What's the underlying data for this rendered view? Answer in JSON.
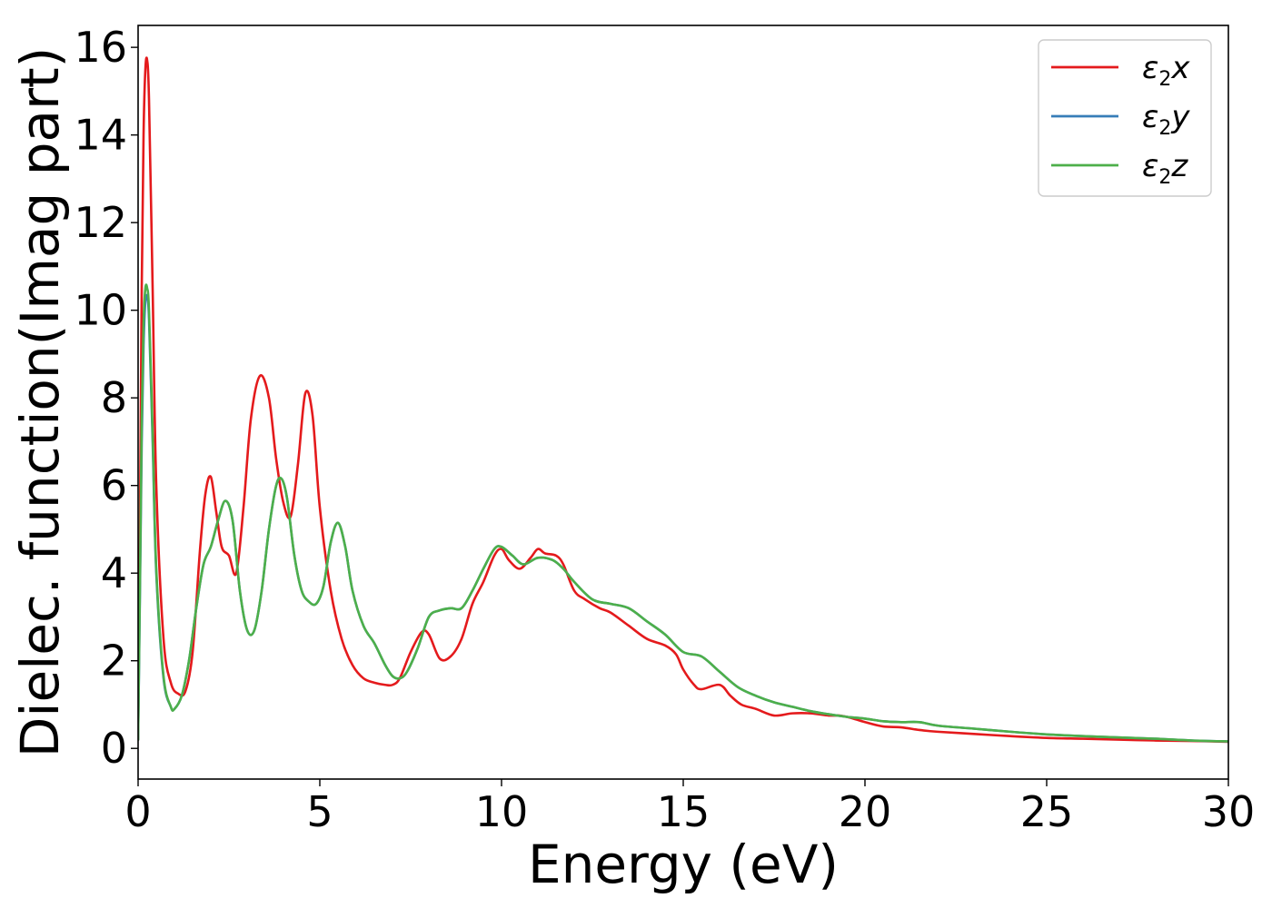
{
  "chart_data": {
    "type": "line",
    "xlabel": "Energy (eV)",
    "ylabel": "Dielec. function(Imag part)",
    "xlim": [
      0,
      30
    ],
    "ylim": [
      -0.7,
      16.5
    ],
    "xticks": [
      0,
      5,
      10,
      15,
      20,
      25,
      30
    ],
    "yticks": [
      0,
      2,
      4,
      6,
      8,
      10,
      12,
      14,
      16
    ],
    "grid": false,
    "legend_position": "top-right",
    "series": [
      {
        "name": "ε2x",
        "legend": {
          "base": "ε",
          "sub": "2",
          "var": "x"
        },
        "color": "#e41a1c",
        "x": [
          0,
          0.05,
          0.1,
          0.15,
          0.2,
          0.25,
          0.3,
          0.4,
          0.5,
          0.7,
          0.9,
          1.1,
          1.3,
          1.5,
          1.7,
          1.85,
          2.0,
          2.15,
          2.3,
          2.5,
          2.7,
          2.9,
          3.1,
          3.35,
          3.6,
          3.8,
          4.0,
          4.2,
          4.4,
          4.6,
          4.8,
          5.0,
          5.3,
          5.6,
          5.9,
          6.2,
          6.5,
          6.8,
          7.0,
          7.2,
          7.5,
          7.8,
          8.0,
          8.3,
          8.6,
          8.9,
          9.2,
          9.5,
          9.8,
          10.0,
          10.2,
          10.5,
          10.8,
          11.0,
          11.2,
          11.5,
          11.7,
          12.0,
          12.3,
          12.7,
          13.0,
          13.5,
          14.0,
          14.5,
          14.8,
          15.0,
          15.3,
          15.5,
          16.0,
          16.3,
          16.6,
          17.0,
          17.5,
          18.0,
          18.5,
          19.0,
          19.3,
          19.6,
          20.0,
          20.5,
          21.0,
          21.5,
          22.0,
          23.0,
          24.0,
          25.0,
          26.0,
          27.0,
          28.0,
          29.0,
          30.0
        ],
        "y": [
          0.2,
          5.0,
          10.5,
          14.0,
          15.5,
          15.7,
          14.8,
          10.5,
          6.0,
          2.5,
          1.5,
          1.25,
          1.3,
          2.2,
          4.5,
          5.8,
          6.2,
          5.4,
          4.6,
          4.4,
          4.0,
          5.5,
          7.5,
          8.5,
          8.0,
          6.6,
          5.6,
          5.3,
          6.5,
          8.1,
          7.6,
          5.5,
          3.6,
          2.5,
          1.9,
          1.6,
          1.5,
          1.45,
          1.45,
          1.6,
          2.2,
          2.65,
          2.6,
          2.05,
          2.1,
          2.5,
          3.3,
          3.8,
          4.4,
          4.55,
          4.3,
          4.1,
          4.35,
          4.55,
          4.45,
          4.4,
          4.2,
          3.6,
          3.4,
          3.2,
          3.1,
          2.8,
          2.5,
          2.35,
          2.15,
          1.8,
          1.45,
          1.35,
          1.45,
          1.2,
          1.0,
          0.9,
          0.75,
          0.8,
          0.8,
          0.75,
          0.75,
          0.7,
          0.6,
          0.5,
          0.48,
          0.42,
          0.38,
          0.33,
          0.28,
          0.24,
          0.22,
          0.2,
          0.18,
          0.17,
          0.15
        ]
      },
      {
        "name": "ε2y",
        "legend": {
          "base": "ε",
          "sub": "2",
          "var": "y"
        },
        "color": "#377eb8",
        "x": [
          0,
          0.05,
          0.1,
          0.15,
          0.2,
          0.25,
          0.3,
          0.4,
          0.5,
          0.7,
          0.9,
          1.0,
          1.2,
          1.4,
          1.6,
          1.8,
          2.0,
          2.2,
          2.4,
          2.6,
          2.8,
          3.0,
          3.2,
          3.4,
          3.6,
          3.8,
          3.95,
          4.1,
          4.3,
          4.5,
          4.7,
          4.9,
          5.1,
          5.3,
          5.5,
          5.7,
          5.9,
          6.2,
          6.5,
          6.8,
          7.0,
          7.2,
          7.4,
          7.7,
          8.0,
          8.3,
          8.6,
          8.9,
          9.2,
          9.5,
          9.8,
          10.0,
          10.3,
          10.6,
          11.0,
          11.4,
          11.7,
          12.0,
          12.5,
          13.0,
          13.5,
          14.0,
          14.5,
          15.0,
          15.5,
          16.0,
          16.5,
          17.0,
          17.5,
          18.0,
          18.5,
          19.0,
          19.5,
          20.0,
          20.5,
          21.0,
          21.5,
          22.0,
          23.0,
          24.0,
          25.0,
          26.0,
          27.0,
          28.0,
          29.0,
          30.0
        ],
        "y": [
          0.2,
          3.5,
          7.0,
          9.2,
          10.2,
          10.3,
          9.8,
          7.0,
          4.0,
          1.6,
          0.95,
          0.9,
          1.2,
          2.0,
          3.2,
          4.2,
          4.6,
          5.2,
          5.65,
          5.2,
          3.6,
          2.7,
          2.7,
          3.6,
          5.0,
          6.0,
          6.15,
          5.7,
          4.4,
          3.6,
          3.35,
          3.3,
          3.7,
          4.7,
          5.15,
          4.6,
          3.6,
          2.8,
          2.4,
          1.9,
          1.65,
          1.6,
          1.75,
          2.3,
          3.0,
          3.15,
          3.2,
          3.2,
          3.6,
          4.1,
          4.55,
          4.6,
          4.4,
          4.2,
          4.35,
          4.3,
          4.1,
          3.8,
          3.4,
          3.3,
          3.2,
          2.9,
          2.6,
          2.2,
          2.1,
          1.75,
          1.4,
          1.2,
          1.05,
          0.95,
          0.85,
          0.78,
          0.72,
          0.68,
          0.62,
          0.6,
          0.6,
          0.52,
          0.45,
          0.38,
          0.32,
          0.28,
          0.25,
          0.22,
          0.18,
          0.16
        ]
      },
      {
        "name": "ε2z",
        "legend": {
          "base": "ε",
          "sub": "2",
          "var": "z"
        },
        "color": "#4daf4a",
        "x": [
          0,
          0.05,
          0.1,
          0.15,
          0.2,
          0.25,
          0.3,
          0.4,
          0.5,
          0.7,
          0.9,
          1.0,
          1.2,
          1.4,
          1.6,
          1.8,
          2.0,
          2.2,
          2.4,
          2.6,
          2.8,
          3.0,
          3.2,
          3.4,
          3.6,
          3.8,
          3.95,
          4.1,
          4.3,
          4.5,
          4.7,
          4.9,
          5.1,
          5.3,
          5.5,
          5.7,
          5.9,
          6.2,
          6.5,
          6.8,
          7.0,
          7.2,
          7.4,
          7.7,
          8.0,
          8.3,
          8.6,
          8.9,
          9.2,
          9.5,
          9.8,
          10.0,
          10.3,
          10.6,
          11.0,
          11.4,
          11.7,
          12.0,
          12.5,
          13.0,
          13.5,
          14.0,
          14.5,
          15.0,
          15.5,
          16.0,
          16.5,
          17.0,
          17.5,
          18.0,
          18.5,
          19.0,
          19.5,
          20.0,
          20.5,
          21.0,
          21.5,
          22.0,
          23.0,
          24.0,
          25.0,
          26.0,
          27.0,
          28.0,
          29.0,
          30.0
        ],
        "y": [
          0.2,
          3.7,
          7.5,
          9.7,
          10.5,
          10.5,
          10.0,
          7.2,
          4.1,
          1.65,
          0.95,
          0.9,
          1.2,
          2.0,
          3.2,
          4.2,
          4.6,
          5.2,
          5.65,
          5.2,
          3.6,
          2.7,
          2.7,
          3.6,
          5.0,
          6.0,
          6.15,
          5.7,
          4.4,
          3.6,
          3.35,
          3.3,
          3.7,
          4.7,
          5.15,
          4.6,
          3.6,
          2.8,
          2.4,
          1.9,
          1.65,
          1.6,
          1.75,
          2.3,
          3.0,
          3.15,
          3.2,
          3.2,
          3.6,
          4.1,
          4.55,
          4.6,
          4.4,
          4.2,
          4.35,
          4.3,
          4.1,
          3.8,
          3.4,
          3.3,
          3.2,
          2.9,
          2.6,
          2.2,
          2.1,
          1.75,
          1.4,
          1.2,
          1.05,
          0.95,
          0.85,
          0.78,
          0.72,
          0.68,
          0.62,
          0.6,
          0.6,
          0.52,
          0.45,
          0.38,
          0.32,
          0.28,
          0.25,
          0.22,
          0.18,
          0.16
        ]
      }
    ]
  }
}
